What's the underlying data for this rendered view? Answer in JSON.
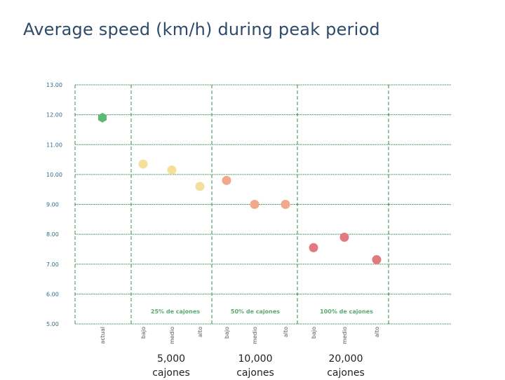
{
  "header": {
    "title": "Average speed (km/h) during peak period"
  },
  "chart_data": {
    "type": "scatter",
    "title": "Average speed (km/h) during peak period",
    "ylim": [
      5,
      13
    ],
    "yticks": [
      "13.00",
      "12.00",
      "11.00",
      "10.00",
      "9.00",
      "8.00",
      "7.00",
      "6.00",
      "5.00"
    ],
    "grid": true,
    "points": [
      {
        "label": "actual",
        "value": 11.9,
        "color": "#5dba75"
      },
      {
        "label": "bajo",
        "value": 10.35,
        "color": "#f4e09a"
      },
      {
        "label": "medio",
        "value": 10.15,
        "color": "#f4e09a"
      },
      {
        "label": "alto",
        "value": 9.6,
        "color": "#f4e09a"
      },
      {
        "label": "bajo",
        "value": 9.8,
        "color": "#f2a88a"
      },
      {
        "label": "medio",
        "value": 9.0,
        "color": "#f2a88a"
      },
      {
        "label": "alto",
        "value": 9.0,
        "color": "#f2a88a"
      },
      {
        "label": "bajo",
        "value": 7.55,
        "color": "#e07a80"
      },
      {
        "label": "medio",
        "value": 7.9,
        "color": "#e07a80"
      },
      {
        "label": "alto",
        "value": 7.15,
        "color": "#e07a80"
      }
    ],
    "groups": [
      {
        "label": "25% de cajones",
        "caption_value": "5,000",
        "caption_unit": "cajones"
      },
      {
        "label": "50% de cajones",
        "caption_value": "10,000",
        "caption_unit": "cajones"
      },
      {
        "label": "100% de cajones",
        "caption_value": "20,000",
        "caption_unit": "cajones"
      }
    ]
  }
}
